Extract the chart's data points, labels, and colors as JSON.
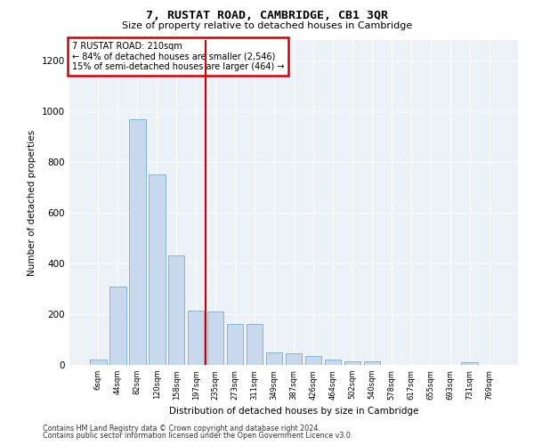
{
  "title": "7, RUSTAT ROAD, CAMBRIDGE, CB1 3QR",
  "subtitle": "Size of property relative to detached houses in Cambridge",
  "xlabel": "Distribution of detached houses by size in Cambridge",
  "ylabel": "Number of detached properties",
  "bar_color": "#c8d9ee",
  "bar_edge_color": "#7aadd4",
  "categories": [
    "6sqm",
    "44sqm",
    "82sqm",
    "120sqm",
    "158sqm",
    "197sqm",
    "235sqm",
    "273sqm",
    "311sqm",
    "349sqm",
    "387sqm",
    "426sqm",
    "464sqm",
    "502sqm",
    "540sqm",
    "578sqm",
    "617sqm",
    "655sqm",
    "693sqm",
    "731sqm",
    "769sqm"
  ],
  "values": [
    22,
    307,
    968,
    750,
    430,
    213,
    210,
    163,
    163,
    50,
    45,
    35,
    22,
    15,
    15,
    0,
    0,
    0,
    0,
    10,
    0
  ],
  "ylim": [
    0,
    1280
  ],
  "yticks": [
    0,
    200,
    400,
    600,
    800,
    1000,
    1200
  ],
  "property_line_x": 5.5,
  "annotation_line1": "7 RUSTAT ROAD: 210sqm",
  "annotation_line2": "← 84% of detached houses are smaller (2,546)",
  "annotation_line3": "15% of semi-detached houses are larger (464) →",
  "annotation_box_color": "#ffffff",
  "annotation_box_edge": "#cc0000",
  "red_line_color": "#cc0000",
  "footer1": "Contains HM Land Registry data © Crown copyright and database right 2024.",
  "footer2": "Contains public sector information licensed under the Open Government Licence v3.0.",
  "background_color": "#edf1f8"
}
